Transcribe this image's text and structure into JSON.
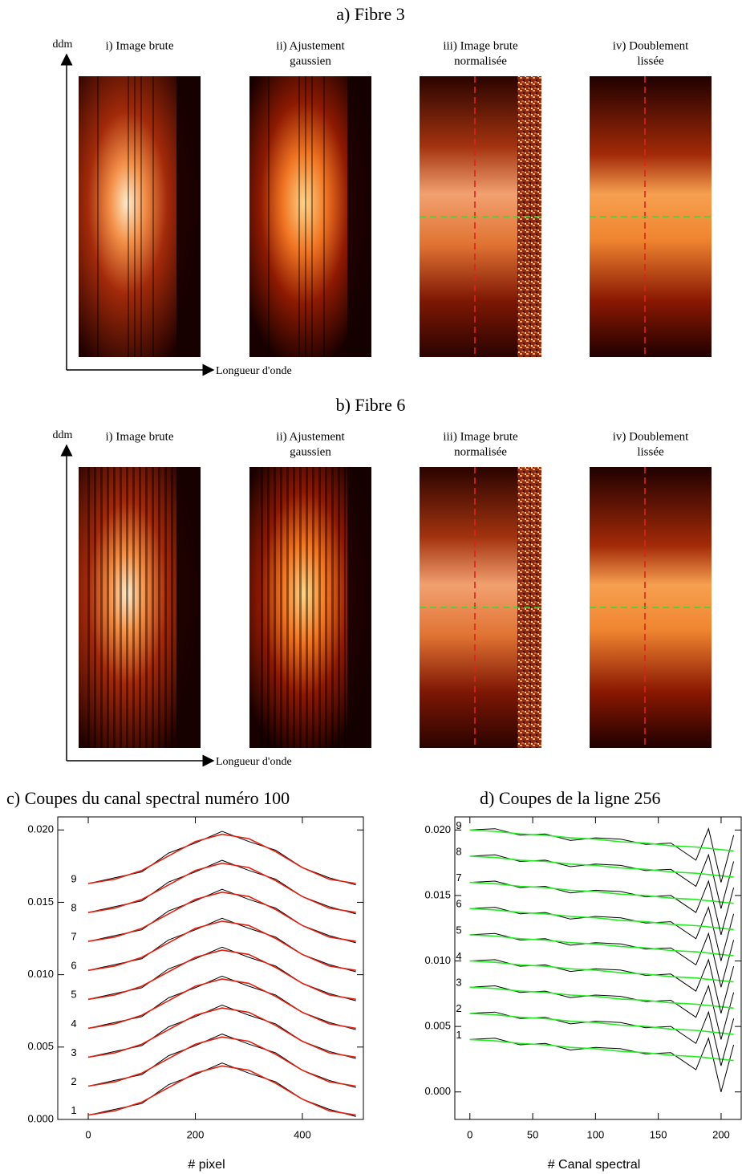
{
  "panels": [
    {
      "title": "a) Fibre 3",
      "y_label": "ddm",
      "x_label": "Longueur d'onde",
      "images": [
        [
          "i) Image brute"
        ],
        [
          "ii) Ajustement",
          "gaussien"
        ],
        [
          "iii) Image brute",
          "normalisée"
        ],
        [
          "iv) Doublement",
          "lissée"
        ]
      ]
    },
    {
      "title": "b) Fibre 6",
      "y_label": "ddm",
      "x_label": "Longueur d'onde",
      "images": [
        [
          "i) Image brute"
        ],
        [
          "ii) Ajustement",
          "gaussien"
        ],
        [
          "iii) Image brute",
          "normalisée"
        ],
        [
          "iv) Doublement",
          "lissée"
        ]
      ]
    }
  ],
  "chart_data": [
    {
      "type": "line",
      "title": "c) Coupes du canal spectral numéro 100",
      "x_label": "# pixel",
      "x": [
        0,
        50,
        100,
        150,
        200,
        250,
        300,
        350,
        400,
        450,
        500
      ],
      "xlim": [
        -57,
        514
      ],
      "xticks": [
        0,
        200,
        400
      ],
      "ylim": [
        0,
        0.0209
      ],
      "yticks": [
        {
          "value": 0,
          "label": "0.000"
        },
        0.005,
        {
          "value": 0.01,
          "label": "0.010"
        },
        0.015,
        {
          "value": 0.02,
          "label": "0.020"
        }
      ],
      "series": [
        {
          "name": "1",
          "color": "#000000",
          "fit_color": "#e02010",
          "values": [
            0.0003,
            0.0007,
            0.0011,
            0.0024,
            0.0031,
            0.0039,
            0.0032,
            0.0026,
            0.0014,
            0.0007,
            0.0002
          ],
          "fit_values": [
            0.0003,
            0.0006,
            0.0012,
            0.0022,
            0.0032,
            0.0037,
            0.0034,
            0.0025,
            0.0014,
            0.0006,
            0.0003
          ]
        },
        {
          "name": "2",
          "color": "#000000",
          "fit_color": "#e02010",
          "values": [
            0.0023,
            0.0027,
            0.0031,
            0.0044,
            0.0051,
            0.0059,
            0.0052,
            0.0046,
            0.0034,
            0.0027,
            0.0022
          ],
          "fit_values": [
            0.0023,
            0.0026,
            0.0032,
            0.0042,
            0.0052,
            0.0057,
            0.0054,
            0.0045,
            0.0034,
            0.0026,
            0.0023
          ]
        },
        {
          "name": "3",
          "color": "#000000",
          "fit_color": "#e02010",
          "values": [
            0.0043,
            0.0047,
            0.0051,
            0.0064,
            0.0071,
            0.0079,
            0.0072,
            0.0066,
            0.0054,
            0.0047,
            0.0042
          ],
          "fit_values": [
            0.0043,
            0.0046,
            0.0052,
            0.0062,
            0.0072,
            0.0077,
            0.0074,
            0.0065,
            0.0054,
            0.0046,
            0.0043
          ]
        },
        {
          "name": "4",
          "color": "#000000",
          "fit_color": "#e02010",
          "values": [
            0.0063,
            0.0067,
            0.0071,
            0.0084,
            0.0091,
            0.0099,
            0.0092,
            0.0086,
            0.0074,
            0.0067,
            0.0062
          ],
          "fit_values": [
            0.0063,
            0.0066,
            0.0072,
            0.0082,
            0.0092,
            0.0097,
            0.0094,
            0.0085,
            0.0074,
            0.0066,
            0.0063
          ]
        },
        {
          "name": "5",
          "color": "#000000",
          "fit_color": "#e02010",
          "values": [
            0.0083,
            0.0087,
            0.0091,
            0.0104,
            0.0111,
            0.0119,
            0.0112,
            0.0106,
            0.0094,
            0.0087,
            0.0082
          ],
          "fit_values": [
            0.0083,
            0.0086,
            0.0092,
            0.0102,
            0.0112,
            0.0117,
            0.0114,
            0.0105,
            0.0094,
            0.0086,
            0.0083
          ]
        },
        {
          "name": "6",
          "color": "#000000",
          "fit_color": "#e02010",
          "values": [
            0.0103,
            0.0107,
            0.0111,
            0.0124,
            0.0131,
            0.0139,
            0.0132,
            0.0126,
            0.0114,
            0.0107,
            0.0102
          ],
          "fit_values": [
            0.0103,
            0.0106,
            0.0112,
            0.0122,
            0.0132,
            0.0137,
            0.0134,
            0.0125,
            0.0114,
            0.0106,
            0.0103
          ]
        },
        {
          "name": "7",
          "color": "#000000",
          "fit_color": "#e02010",
          "values": [
            0.0123,
            0.0127,
            0.0131,
            0.0144,
            0.0151,
            0.0159,
            0.0152,
            0.0146,
            0.0134,
            0.0127,
            0.0122
          ],
          "fit_values": [
            0.0123,
            0.0126,
            0.0132,
            0.0142,
            0.0152,
            0.0157,
            0.0154,
            0.0145,
            0.0134,
            0.0126,
            0.0123
          ]
        },
        {
          "name": "8",
          "color": "#000000",
          "fit_color": "#e02010",
          "values": [
            0.0143,
            0.0147,
            0.0151,
            0.0164,
            0.0171,
            0.0179,
            0.0172,
            0.0166,
            0.0154,
            0.0147,
            0.0142
          ],
          "fit_values": [
            0.0143,
            0.0146,
            0.0152,
            0.0162,
            0.0172,
            0.0177,
            0.0174,
            0.0165,
            0.0154,
            0.0146,
            0.0143
          ]
        },
        {
          "name": "9",
          "color": "#000000",
          "fit_color": "#e02010",
          "values": [
            0.0163,
            0.0167,
            0.0171,
            0.0184,
            0.0191,
            0.0199,
            0.0192,
            0.0186,
            0.0174,
            0.0167,
            0.0162
          ],
          "fit_values": [
            0.0163,
            0.0166,
            0.0172,
            0.0182,
            0.0192,
            0.0197,
            0.0194,
            0.0185,
            0.0174,
            0.0166,
            0.0163
          ]
        }
      ]
    },
    {
      "type": "line",
      "title": "d) Coupes de la ligne 256",
      "x_label": "# Canal spectral",
      "x": [
        0,
        20,
        40,
        60,
        80,
        100,
        120,
        140,
        160,
        180,
        190,
        200,
        210
      ],
      "xlim": [
        -12,
        216
      ],
      "xticks": [
        0,
        50,
        100,
        150,
        200
      ],
      "ylim": [
        -0.0021,
        0.021
      ],
      "yticks": [
        {
          "value": 0,
          "label": "0.000"
        },
        0.005,
        {
          "value": 0.01,
          "label": "0.010"
        },
        0.015,
        {
          "value": 0.02,
          "label": "0.020"
        }
      ],
      "series": [
        {
          "name": "1",
          "color": "#000000",
          "fit_color": "#22ee22",
          "values": [
            0.004,
            0.0041,
            0.0036,
            0.0037,
            0.0032,
            0.0034,
            0.0033,
            0.0029,
            0.003,
            0.0017,
            0.0041,
            0,
            0.0036
          ],
          "fit_values": [
            0.004,
            0.0039,
            0.0037,
            0.0036,
            0.0034,
            0.0033,
            0.0031,
            0.003,
            0.0028,
            0.0027,
            0.0026,
            0.0025,
            0.0024
          ]
        },
        {
          "name": "2",
          "color": "#000000",
          "fit_color": "#22ee22",
          "values": [
            0.006,
            0.0061,
            0.0056,
            0.0057,
            0.0052,
            0.0054,
            0.0053,
            0.0049,
            0.005,
            0.0037,
            0.0061,
            0.002,
            0.0056
          ],
          "fit_values": [
            0.006,
            0.0059,
            0.0057,
            0.0056,
            0.0054,
            0.0053,
            0.0051,
            0.005,
            0.0048,
            0.0047,
            0.0046,
            0.0045,
            0.0044
          ]
        },
        {
          "name": "3",
          "color": "#000000",
          "fit_color": "#22ee22",
          "values": [
            0.008,
            0.0081,
            0.0076,
            0.0077,
            0.0072,
            0.0074,
            0.0073,
            0.0069,
            0.007,
            0.0057,
            0.0081,
            0.004,
            0.0076
          ],
          "fit_values": [
            0.008,
            0.0079,
            0.0077,
            0.0076,
            0.0074,
            0.0073,
            0.0071,
            0.007,
            0.0068,
            0.0067,
            0.0066,
            0.0065,
            0.0064
          ]
        },
        {
          "name": "4",
          "color": "#000000",
          "fit_color": "#22ee22",
          "values": [
            0.01,
            0.0101,
            0.0096,
            0.0097,
            0.0092,
            0.0094,
            0.0093,
            0.0089,
            0.009,
            0.0077,
            0.0101,
            0.006,
            0.0096
          ],
          "fit_values": [
            0.01,
            0.0099,
            0.0097,
            0.0096,
            0.0094,
            0.0093,
            0.0091,
            0.009,
            0.0088,
            0.0087,
            0.0086,
            0.0085,
            0.0084
          ]
        },
        {
          "name": "5",
          "color": "#000000",
          "fit_color": "#22ee22",
          "values": [
            0.012,
            0.0121,
            0.0116,
            0.0117,
            0.0112,
            0.0114,
            0.0113,
            0.0109,
            0.011,
            0.0097,
            0.0121,
            0.008,
            0.0116
          ],
          "fit_values": [
            0.012,
            0.0119,
            0.0117,
            0.0116,
            0.0114,
            0.0113,
            0.0111,
            0.011,
            0.0108,
            0.0107,
            0.0106,
            0.0105,
            0.0104
          ]
        },
        {
          "name": "6",
          "color": "#000000",
          "fit_color": "#22ee22",
          "values": [
            0.014,
            0.0141,
            0.0136,
            0.0137,
            0.0132,
            0.0134,
            0.0133,
            0.0129,
            0.013,
            0.0117,
            0.0141,
            0.01,
            0.0136
          ],
          "fit_values": [
            0.014,
            0.0139,
            0.0137,
            0.0136,
            0.0134,
            0.0133,
            0.0131,
            0.013,
            0.0128,
            0.0127,
            0.0126,
            0.0125,
            0.0124
          ]
        },
        {
          "name": "7",
          "color": "#000000",
          "fit_color": "#22ee22",
          "values": [
            0.016,
            0.0161,
            0.0156,
            0.0157,
            0.0152,
            0.0154,
            0.0153,
            0.0149,
            0.015,
            0.0137,
            0.0161,
            0.012,
            0.0156
          ],
          "fit_values": [
            0.016,
            0.0159,
            0.0157,
            0.0156,
            0.0154,
            0.0153,
            0.0151,
            0.015,
            0.0148,
            0.0147,
            0.0146,
            0.0145,
            0.0144
          ]
        },
        {
          "name": "8",
          "color": "#000000",
          "fit_color": "#22ee22",
          "values": [
            0.018,
            0.0181,
            0.0176,
            0.0177,
            0.0172,
            0.0174,
            0.0173,
            0.0169,
            0.017,
            0.0157,
            0.0181,
            0.014,
            0.0176
          ],
          "fit_values": [
            0.018,
            0.0179,
            0.0177,
            0.0176,
            0.0174,
            0.0173,
            0.0171,
            0.017,
            0.0168,
            0.0167,
            0.0166,
            0.0165,
            0.0164
          ]
        },
        {
          "name": "9",
          "color": "#000000",
          "fit_color": "#22ee22",
          "values": [
            0.02,
            0.0201,
            0.0196,
            0.0197,
            0.0192,
            0.0194,
            0.0193,
            0.0189,
            0.019,
            0.0177,
            0.0201,
            0.016,
            0.0196
          ],
          "fit_values": [
            0.02,
            0.0199,
            0.0197,
            0.0196,
            0.0194,
            0.0193,
            0.0191,
            0.019,
            0.0188,
            0.0187,
            0.0186,
            0.0185,
            0.0184
          ]
        }
      ]
    }
  ]
}
